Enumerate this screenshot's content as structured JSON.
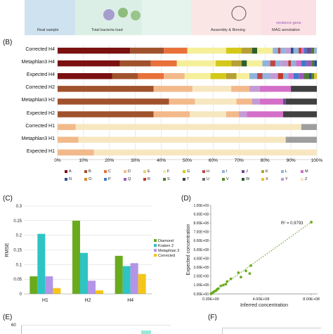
{
  "panel_a": {
    "steps": [
      "Real sample",
      "Total bacteria load",
      "Assembly & Binning",
      "MAG annotation"
    ],
    "sub_note": "virulence gene"
  },
  "panel_labels": {
    "b": "(B)",
    "c": "(C)",
    "d": "(D)",
    "e": "(E)",
    "f": "(F)"
  },
  "colors": {
    "A": "#7b1010",
    "B": "#a0522d",
    "C": "#e8703a",
    "D": "#f2b98a",
    "E": "#eed170",
    "F": "#f5ef9a",
    "G": "#d4c81a",
    "H": "#c04646",
    "I": "#8fb3dc",
    "J": "#6a4c93",
    "K": "#b5a034",
    "L": "#93b4dd",
    "M": "#d36fc8",
    "N": "#2a4a8a",
    "O": "#d48a2a",
    "P": "#3d7cc8",
    "Q": "#9b59b6",
    "R": "#c0392b",
    "S": "#4e7b32",
    "T": "#404040",
    "U": "#6e6e6e",
    "V": "#5a8a2a",
    "W": "#2e5e2e",
    "X": "#e6c229",
    "Y": "#c39bd3",
    "Z": "#f7e7c0",
    "grey": "#9e9e9e",
    "diamond": "#6aab1e",
    "kraken": "#2ec4c4",
    "metaphlan": "#b394e6",
    "corrected": "#f5c518"
  },
  "chart_data": [
    {
      "type": "bar",
      "orientation": "horizontal",
      "stacked": true,
      "percent": true,
      "xlim": [
        0,
        100
      ],
      "x_ticks": [
        "0%",
        "10%",
        "20%",
        "30%",
        "40%",
        "50%",
        "60%",
        "70%",
        "80%",
        "90%",
        "100%"
      ],
      "categories": [
        "Corrected H4",
        "Metaphlan3 H4",
        "Expected H4",
        "Corrected H2",
        "Metaphlan3 H2",
        "Expected H2",
        "Corrected H1",
        "Metaphlan3 H1",
        "Expected H1"
      ],
      "legend": [
        "A",
        "B",
        "C",
        "D",
        "E",
        "F",
        "G",
        "H",
        "I",
        "J",
        "K",
        "L",
        "M",
        "N",
        "O",
        "P",
        "Q",
        "R",
        "S",
        "T",
        "U",
        "V",
        "W",
        "X",
        "Y",
        "Z"
      ],
      "stacks": [
        [
          [
            "A",
            28
          ],
          [
            "B",
            13
          ],
          [
            "C",
            9
          ],
          [
            "F",
            15
          ],
          [
            "G",
            6
          ],
          [
            "K",
            4
          ],
          [
            "W",
            2
          ],
          [
            "F",
            6
          ],
          [
            "I",
            2
          ],
          [
            "H",
            1
          ],
          [
            "L",
            2
          ],
          [
            "Y",
            2
          ],
          [
            "N",
            1
          ],
          [
            "I",
            2
          ],
          [
            "R",
            1
          ],
          [
            "M",
            1
          ],
          [
            "P",
            1
          ],
          [
            "J",
            2
          ],
          [
            "S",
            1
          ],
          [
            "L",
            1
          ]
        ],
        [
          [
            "A",
            24
          ],
          [
            "B",
            12
          ],
          [
            "C",
            10
          ],
          [
            "F",
            15
          ],
          [
            "G",
            6
          ],
          [
            "K",
            4
          ],
          [
            "W",
            2
          ],
          [
            "F",
            6
          ],
          [
            "I",
            3
          ],
          [
            "H",
            2
          ],
          [
            "L",
            2
          ],
          [
            "Y",
            3
          ],
          [
            "R",
            1
          ],
          [
            "I",
            2
          ],
          [
            "M",
            2
          ],
          [
            "P",
            2
          ],
          [
            "Q",
            2
          ],
          [
            "S",
            1
          ],
          [
            "N",
            1
          ]
        ],
        [
          [
            "A",
            21
          ],
          [
            "B",
            10
          ],
          [
            "C",
            10
          ],
          [
            "D",
            8
          ],
          [
            "F",
            10
          ],
          [
            "G",
            6
          ],
          [
            "K",
            4
          ],
          [
            "F",
            5
          ],
          [
            "I",
            3
          ],
          [
            "H",
            2
          ],
          [
            "L",
            3
          ],
          [
            "Y",
            3
          ],
          [
            "R",
            2
          ],
          [
            "I",
            2
          ],
          [
            "M",
            2
          ],
          [
            "P",
            2
          ],
          [
            "Q",
            2
          ],
          [
            "S",
            2
          ],
          [
            "N",
            1
          ],
          [
            "V",
            1
          ],
          [
            "X",
            1
          ]
        ],
        [
          [
            "B",
            37
          ],
          [
            "D",
            15
          ],
          [
            "Z",
            15
          ],
          [
            "D",
            7
          ],
          [
            "Y",
            4
          ],
          [
            "M",
            12
          ],
          [
            "T",
            10
          ]
        ],
        [
          [
            "B",
            43
          ],
          [
            "D",
            10
          ],
          [
            "Z",
            16
          ],
          [
            "D",
            6
          ],
          [
            "Y",
            3
          ],
          [
            "M",
            9
          ],
          [
            "J",
            1
          ],
          [
            "T",
            12
          ]
        ],
        [
          [
            "B",
            37
          ],
          [
            "D",
            14
          ],
          [
            "Z",
            14
          ],
          [
            "D",
            5
          ],
          [
            "Y",
            3
          ],
          [
            "M",
            14
          ],
          [
            "T",
            13
          ]
        ],
        [
          [
            "D",
            7
          ],
          [
            "Z",
            87
          ],
          [
            "grey",
            6
          ]
        ],
        [
          [
            "D",
            8
          ],
          [
            "Z",
            80
          ],
          [
            "grey",
            12
          ]
        ],
        [
          [
            "D",
            14
          ],
          [
            "Z",
            86
          ]
        ]
      ]
    },
    {
      "type": "bar",
      "ylabel": "RMSE",
      "categories": [
        "H1",
        "H2",
        "H4"
      ],
      "ylim": [
        0,
        0.3
      ],
      "y_ticks": [
        "0",
        "0.05",
        "0.1",
        "0.15",
        "0.2",
        "0.25",
        "0.3"
      ],
      "series": [
        {
          "name": "Diamond",
          "values": [
            0.06,
            0.25,
            0.13
          ]
        },
        {
          "name": "Kraken 2",
          "values": [
            0.205,
            0.14,
            0.095
          ]
        },
        {
          "name": "Metaphlan 3",
          "values": [
            0.06,
            0.045,
            0.105
          ]
        },
        {
          "name": "Corrected",
          "values": [
            0.02,
            0.012,
            0.068
          ]
        }
      ]
    },
    {
      "type": "scatter",
      "xlabel": "Inferred concentration",
      "ylabel": "Expected concentration",
      "xlim": [
        0,
        850000000.0
      ],
      "ylim": [
        0,
        1000000000.0
      ],
      "x_ticks": [
        "0.00E+00",
        "4.00E+08",
        "8.00E+08"
      ],
      "y_ticks": [
        "0.00E+00",
        "1.00E+08",
        "2.00E+08",
        "3.00E+08",
        "4.00E+08",
        "5.00E+08",
        "6.00E+08",
        "7.00E+08",
        "8.00E+08",
        "9.00E+08",
        "1.00E+09"
      ],
      "annotation": "R² = 0.9793",
      "x": [
        800000000.0,
        320000000.0,
        280000000.0,
        310000000.0,
        220000000.0,
        240000000.0,
        160000000.0,
        130000000.0,
        120000000.0,
        100000000.0,
        80000000.0,
        60000000.0,
        50000000.0,
        40000000.0,
        30000000.0,
        20000000.0,
        15000000.0,
        10000000.0,
        5000000.0,
        2000000.0
      ],
      "y": [
        810000000.0,
        320000000.0,
        260000000.0,
        230000000.0,
        240000000.0,
        190000000.0,
        170000000.0,
        140000000.0,
        110000000.0,
        100000000.0,
        90000000.0,
        60000000.0,
        50000000.0,
        35000000.0,
        30000000.0,
        20000000.0,
        12000000.0,
        8000000.0,
        4000000.0,
        1000000.0
      ]
    },
    {
      "type": "bar",
      "y_ticks": [
        "60"
      ]
    }
  ]
}
